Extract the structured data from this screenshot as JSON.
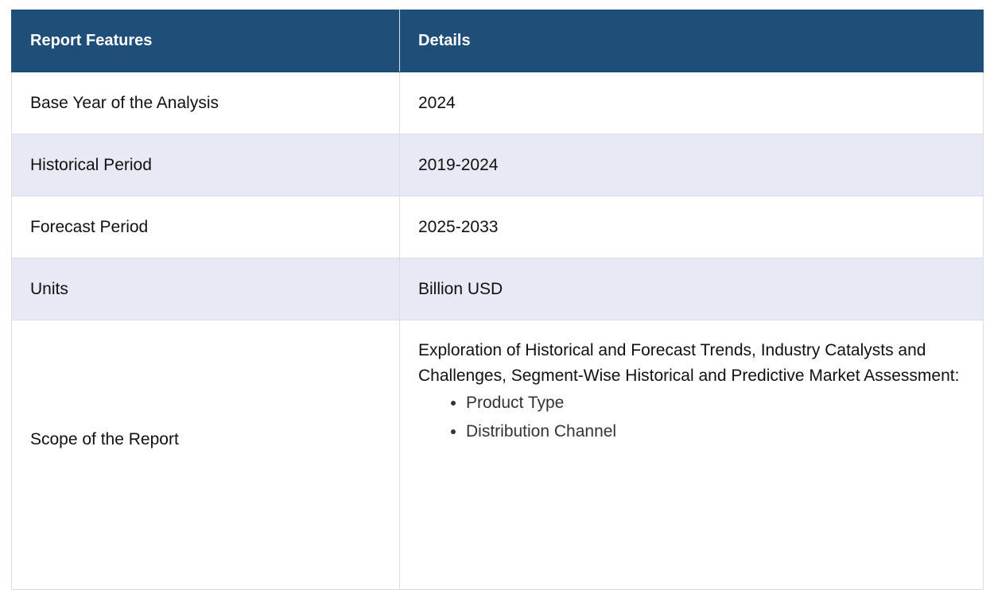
{
  "header": {
    "col1": "Report Features",
    "col2": "Details"
  },
  "rows": [
    {
      "feature": "Base Year of the Analysis",
      "detail": "2024"
    },
    {
      "feature": "Historical Period",
      "detail": "2019-2024"
    },
    {
      "feature": "Forecast Period",
      "detail": "2025-2033"
    },
    {
      "feature": "Units",
      "detail": "Billion USD"
    }
  ],
  "scope": {
    "feature": "Scope of the Report",
    "description": "Exploration of Historical and Forecast Trends, Industry Catalysts and Challenges, Segment-Wise Historical and Predictive Market Assessment:",
    "items": [
      "Product Type",
      "Distribution Channel"
    ]
  },
  "colors": {
    "header_bg": "#1f4e79",
    "alt_row_bg": "#e7e9f5"
  }
}
